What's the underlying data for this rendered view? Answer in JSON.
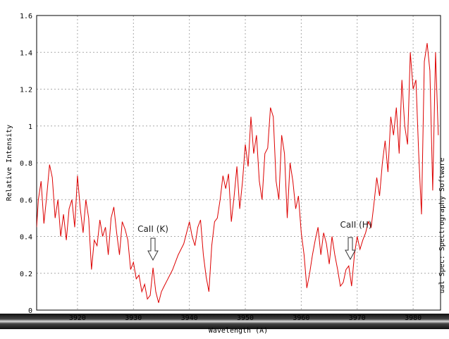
{
  "chart_data": {
    "type": "line",
    "x_label": "Wavelength (A)",
    "y_label": "Relative Intensity",
    "side_label": "ual Spec: Spectrography Software",
    "annotations": [
      "CaII (K)",
      "CaII (H)"
    ],
    "grid": true,
    "xlim": [
      3912.7,
      3984.9
    ],
    "ylim": [
      0,
      1.6
    ],
    "xticks": [
      3920,
      3930,
      3940,
      3950,
      3960,
      3970,
      3980
    ],
    "yticks": [
      0,
      0.2,
      0.4,
      0.6,
      0.8,
      1,
      1.2,
      1.4,
      1.6
    ],
    "x": [
      3912.7,
      3913.0,
      3913.5,
      3914.0,
      3914.5,
      3915.0,
      3915.5,
      3916.0,
      3916.5,
      3917.0,
      3917.5,
      3918.0,
      3918.5,
      3919.0,
      3919.5,
      3920.0,
      3920.5,
      3921.0,
      3921.5,
      3922.0,
      3922.5,
      3923.0,
      3923.5,
      3924.0,
      3924.5,
      3925.0,
      3925.5,
      3926.0,
      3926.5,
      3927.0,
      3927.5,
      3928.0,
      3928.5,
      3929.0,
      3929.5,
      3930.0,
      3930.5,
      3931.0,
      3931.5,
      3932.0,
      3932.5,
      3933.0,
      3933.5,
      3934.0,
      3934.5,
      3935.0,
      3935.5,
      3936.0,
      3937.0,
      3938.0,
      3939.0,
      3940.0,
      3940.5,
      3941.0,
      3941.5,
      3942.0,
      3942.5,
      3943.0,
      3943.5,
      3944.0,
      3944.5,
      3945.0,
      3945.5,
      3946.0,
      3946.5,
      3947.0,
      3947.5,
      3948.0,
      3948.5,
      3949.0,
      3949.5,
      3950.0,
      3950.5,
      3951.0,
      3951.5,
      3952.0,
      3952.5,
      3953.0,
      3953.5,
      3954.0,
      3954.5,
      3955.0,
      3955.5,
      3956.0,
      3956.5,
      3957.0,
      3957.5,
      3958.0,
      3958.5,
      3959.0,
      3959.5,
      3960.0,
      3960.5,
      3961.0,
      3961.5,
      3962.0,
      3962.5,
      3963.0,
      3963.5,
      3964.0,
      3964.5,
      3965.0,
      3965.5,
      3966.0,
      3966.5,
      3967.0,
      3967.5,
      3968.0,
      3968.5,
      3969.0,
      3969.5,
      3970.0,
      3970.5,
      3971.0,
      3971.5,
      3972.0,
      3972.5,
      3973.0,
      3973.5,
      3974.0,
      3974.5,
      3975.0,
      3975.5,
      3976.0,
      3976.5,
      3977.0,
      3977.5,
      3978.0,
      3978.5,
      3979.0,
      3979.5,
      3980.0,
      3980.5,
      3981.0,
      3981.5,
      3982.0,
      3982.5,
      3983.0,
      3983.5,
      3984.0,
      3984.5
    ],
    "series": [
      {
        "color": "#dd0000",
        "values": [
          0.45,
          0.6,
          0.7,
          0.47,
          0.62,
          0.79,
          0.72,
          0.5,
          0.6,
          0.4,
          0.52,
          0.38,
          0.55,
          0.6,
          0.45,
          0.73,
          0.55,
          0.42,
          0.6,
          0.5,
          0.22,
          0.38,
          0.35,
          0.49,
          0.4,
          0.45,
          0.3,
          0.5,
          0.56,
          0.42,
          0.3,
          0.48,
          0.44,
          0.38,
          0.22,
          0.26,
          0.17,
          0.19,
          0.1,
          0.14,
          0.06,
          0.08,
          0.23,
          0.1,
          0.04,
          0.1,
          0.13,
          0.16,
          0.22,
          0.3,
          0.36,
          0.48,
          0.4,
          0.35,
          0.45,
          0.49,
          0.3,
          0.18,
          0.1,
          0.35,
          0.48,
          0.5,
          0.6,
          0.73,
          0.66,
          0.74,
          0.48,
          0.62,
          0.78,
          0.55,
          0.7,
          0.9,
          0.78,
          1.05,
          0.85,
          0.95,
          0.7,
          0.6,
          0.85,
          0.88,
          1.1,
          1.05,
          0.7,
          0.6,
          0.95,
          0.85,
          0.5,
          0.8,
          0.7,
          0.55,
          0.62,
          0.42,
          0.3,
          0.12,
          0.2,
          0.3,
          0.38,
          0.45,
          0.3,
          0.42,
          0.36,
          0.25,
          0.4,
          0.3,
          0.22,
          0.13,
          0.15,
          0.22,
          0.24,
          0.13,
          0.3,
          0.4,
          0.33,
          0.38,
          0.42,
          0.48,
          0.45,
          0.58,
          0.72,
          0.62,
          0.8,
          0.92,
          0.75,
          1.05,
          0.95,
          1.1,
          0.85,
          1.25,
          1.0,
          0.9,
          1.4,
          1.2,
          1.25,
          0.85,
          0.52,
          1.35,
          1.45,
          1.3,
          0.65,
          1.4,
          0.95
        ]
      }
    ]
  }
}
